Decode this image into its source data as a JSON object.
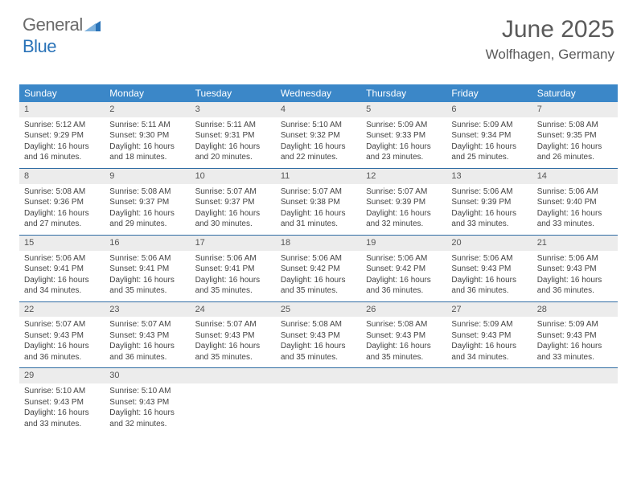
{
  "logo": {
    "part1": "General",
    "part2": "Blue"
  },
  "header": {
    "month_title": "June 2025",
    "location": "Wolfhagen, Germany"
  },
  "colors": {
    "header_bg": "#3b87c8",
    "week_border": "#2f6ca3",
    "daynum_bg": "#ececec",
    "logo_blue": "#2a73b8",
    "logo_gray": "#6b6b6b"
  },
  "day_names": [
    "Sunday",
    "Monday",
    "Tuesday",
    "Wednesday",
    "Thursday",
    "Friday",
    "Saturday"
  ],
  "weeks": [
    [
      {
        "n": "1",
        "sr": "5:12 AM",
        "ss": "9:29 PM",
        "dl": "16 hours and 16 minutes."
      },
      {
        "n": "2",
        "sr": "5:11 AM",
        "ss": "9:30 PM",
        "dl": "16 hours and 18 minutes."
      },
      {
        "n": "3",
        "sr": "5:11 AM",
        "ss": "9:31 PM",
        "dl": "16 hours and 20 minutes."
      },
      {
        "n": "4",
        "sr": "5:10 AM",
        "ss": "9:32 PM",
        "dl": "16 hours and 22 minutes."
      },
      {
        "n": "5",
        "sr": "5:09 AM",
        "ss": "9:33 PM",
        "dl": "16 hours and 23 minutes."
      },
      {
        "n": "6",
        "sr": "5:09 AM",
        "ss": "9:34 PM",
        "dl": "16 hours and 25 minutes."
      },
      {
        "n": "7",
        "sr": "5:08 AM",
        "ss": "9:35 PM",
        "dl": "16 hours and 26 minutes."
      }
    ],
    [
      {
        "n": "8",
        "sr": "5:08 AM",
        "ss": "9:36 PM",
        "dl": "16 hours and 27 minutes."
      },
      {
        "n": "9",
        "sr": "5:08 AM",
        "ss": "9:37 PM",
        "dl": "16 hours and 29 minutes."
      },
      {
        "n": "10",
        "sr": "5:07 AM",
        "ss": "9:37 PM",
        "dl": "16 hours and 30 minutes."
      },
      {
        "n": "11",
        "sr": "5:07 AM",
        "ss": "9:38 PM",
        "dl": "16 hours and 31 minutes."
      },
      {
        "n": "12",
        "sr": "5:07 AM",
        "ss": "9:39 PM",
        "dl": "16 hours and 32 minutes."
      },
      {
        "n": "13",
        "sr": "5:06 AM",
        "ss": "9:39 PM",
        "dl": "16 hours and 33 minutes."
      },
      {
        "n": "14",
        "sr": "5:06 AM",
        "ss": "9:40 PM",
        "dl": "16 hours and 33 minutes."
      }
    ],
    [
      {
        "n": "15",
        "sr": "5:06 AM",
        "ss": "9:41 PM",
        "dl": "16 hours and 34 minutes."
      },
      {
        "n": "16",
        "sr": "5:06 AM",
        "ss": "9:41 PM",
        "dl": "16 hours and 35 minutes."
      },
      {
        "n": "17",
        "sr": "5:06 AM",
        "ss": "9:41 PM",
        "dl": "16 hours and 35 minutes."
      },
      {
        "n": "18",
        "sr": "5:06 AM",
        "ss": "9:42 PM",
        "dl": "16 hours and 35 minutes."
      },
      {
        "n": "19",
        "sr": "5:06 AM",
        "ss": "9:42 PM",
        "dl": "16 hours and 36 minutes."
      },
      {
        "n": "20",
        "sr": "5:06 AM",
        "ss": "9:43 PM",
        "dl": "16 hours and 36 minutes."
      },
      {
        "n": "21",
        "sr": "5:06 AM",
        "ss": "9:43 PM",
        "dl": "16 hours and 36 minutes."
      }
    ],
    [
      {
        "n": "22",
        "sr": "5:07 AM",
        "ss": "9:43 PM",
        "dl": "16 hours and 36 minutes."
      },
      {
        "n": "23",
        "sr": "5:07 AM",
        "ss": "9:43 PM",
        "dl": "16 hours and 36 minutes."
      },
      {
        "n": "24",
        "sr": "5:07 AM",
        "ss": "9:43 PM",
        "dl": "16 hours and 35 minutes."
      },
      {
        "n": "25",
        "sr": "5:08 AM",
        "ss": "9:43 PM",
        "dl": "16 hours and 35 minutes."
      },
      {
        "n": "26",
        "sr": "5:08 AM",
        "ss": "9:43 PM",
        "dl": "16 hours and 35 minutes."
      },
      {
        "n": "27",
        "sr": "5:09 AM",
        "ss": "9:43 PM",
        "dl": "16 hours and 34 minutes."
      },
      {
        "n": "28",
        "sr": "5:09 AM",
        "ss": "9:43 PM",
        "dl": "16 hours and 33 minutes."
      }
    ],
    [
      {
        "n": "29",
        "sr": "5:10 AM",
        "ss": "9:43 PM",
        "dl": "16 hours and 33 minutes."
      },
      {
        "n": "30",
        "sr": "5:10 AM",
        "ss": "9:43 PM",
        "dl": "16 hours and 32 minutes."
      },
      null,
      null,
      null,
      null,
      null
    ]
  ],
  "labels": {
    "sunrise": "Sunrise: ",
    "sunset": "Sunset: ",
    "daylight": "Daylight: "
  }
}
